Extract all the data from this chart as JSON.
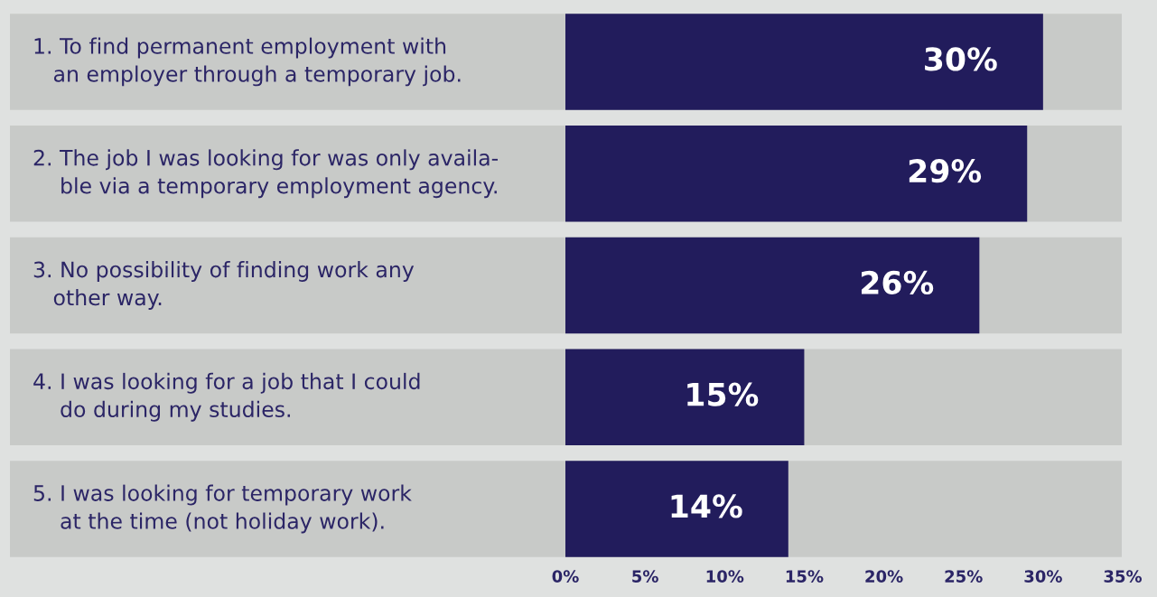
{
  "chart_data": {
    "type": "bar",
    "orientation": "horizontal",
    "categories": [
      "1. To find permanent employment with\n   an employer through a temporary job.",
      "2. The job I was looking for was only availa-\n    ble via a temporary employment agency.",
      "3. No possibility of finding work any\n   other way.",
      "4. I was looking for a job that I could\n    do during my studies.",
      "5. I was looking for temporary work\n    at the time (not holiday work)."
    ],
    "values": [
      30,
      29,
      26,
      15,
      14
    ],
    "value_labels": [
      "30%",
      "29%",
      "26%",
      "15%",
      "14%"
    ],
    "color": "#221c5c",
    "xlim": [
      0,
      35
    ],
    "xticks": [
      {
        "value": 0,
        "label": "0%"
      },
      {
        "value": 5,
        "label": "5%"
      },
      {
        "value": 10,
        "label": "10%"
      },
      {
        "value": 15,
        "label": "15%"
      },
      {
        "value": 20,
        "label": "20%"
      },
      {
        "value": 25,
        "label": "25%"
      },
      {
        "value": 30,
        "label": "30%"
      },
      {
        "value": 35,
        "label": "35%"
      }
    ],
    "grid": false,
    "legend": false
  }
}
